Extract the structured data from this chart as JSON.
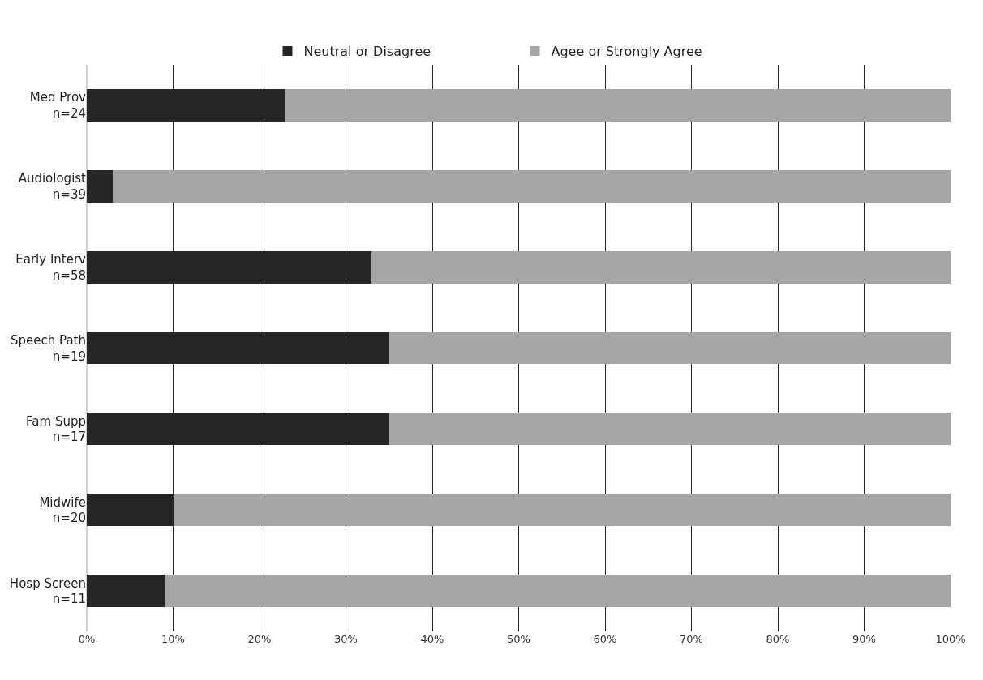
{
  "chart_data": {
    "type": "bar",
    "orientation": "horizontal",
    "stacked": true,
    "categories": [
      "Med Prov\nn=24",
      "Audiologist\nn=39",
      "Early Interv\nn=58",
      "Speech Path\nn=19",
      "Fam Supp\nn=17",
      "Midwife\nn=20",
      "Hosp Screen\nn=11"
    ],
    "series": [
      {
        "name": "Neutral or Disagree",
        "color": "#262626",
        "values": [
          23,
          3,
          33,
          35,
          35,
          10,
          9
        ]
      },
      {
        "name": "Agee or Strongly Agree",
        "color": "#a5a5a5",
        "values": [
          77,
          97,
          67,
          65,
          65,
          90,
          91
        ]
      }
    ],
    "xlim": [
      0,
      100
    ],
    "xticks": [
      {
        "value": 0,
        "label": "0%"
      },
      {
        "value": 10,
        "label": "10%"
      },
      {
        "value": 20,
        "label": "20%"
      },
      {
        "value": 30,
        "label": "30%"
      },
      {
        "value": 40,
        "label": "40%"
      },
      {
        "value": 50,
        "label": "50%"
      },
      {
        "value": 60,
        "label": "60%"
      },
      {
        "value": 70,
        "label": "70%"
      },
      {
        "value": 80,
        "label": "80%"
      },
      {
        "value": 90,
        "label": "90%"
      },
      {
        "value": 100,
        "label": "100%"
      }
    ],
    "grid": "x",
    "legend": "top"
  }
}
